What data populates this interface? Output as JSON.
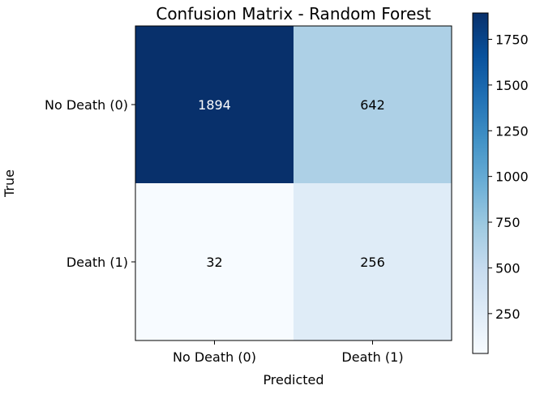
{
  "chart_data": {
    "type": "heatmap",
    "title": "Confusion Matrix - Random Forest",
    "xlabel": "Predicted",
    "ylabel": "True",
    "x_categories": [
      "No Death (0)",
      "Death (1)"
    ],
    "y_categories": [
      "No Death (0)",
      "Death (1)"
    ],
    "values": [
      [
        1894,
        642
      ],
      [
        32,
        256
      ]
    ],
    "colormap": "Blues",
    "colorbar": {
      "range": [
        32,
        1894
      ],
      "ticks": [
        250,
        500,
        750,
        1000,
        1250,
        1500,
        1750
      ]
    },
    "grid": false
  },
  "colors": {
    "low": "#f7fbff",
    "high": "#08306b",
    "text_light": "#ffffff",
    "text_dark": "#000000"
  }
}
